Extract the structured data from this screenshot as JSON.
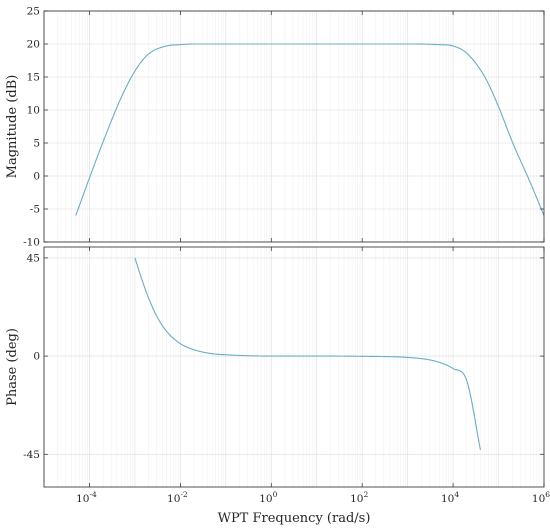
{
  "chart_data": [
    {
      "type": "line",
      "panel": "magnitude",
      "ylabel": "Magnitude (dB)",
      "ylim": [
        -10,
        25
      ],
      "yticks": [
        -10,
        -5,
        0,
        5,
        10,
        15,
        20,
        25
      ],
      "ytick_labels": [
        "-10",
        "-5",
        "0",
        "5",
        "10",
        "15",
        "20",
        "25"
      ],
      "xscale": "log",
      "xlim": [
        1e-05,
        1000000
      ],
      "grid": true,
      "series": [
        {
          "color": "#6aaec4",
          "x": [
            5e-05,
            0.0001,
            0.0002,
            0.0005,
            0.001,
            0.002,
            0.005,
            0.01,
            0.02,
            0.05,
            0.1,
            1,
            10,
            100,
            1000,
            5000,
            10000,
            20000,
            50000,
            100000,
            200000,
            500000,
            1000000
          ],
          "y": [
            -6.0,
            -0.3,
            5.2,
            11.9,
            15.9,
            18.5,
            19.7,
            19.9,
            20.0,
            20.0,
            20.0,
            20.0,
            20.0,
            20.0,
            20.0,
            19.9,
            19.7,
            18.6,
            15.0,
            10.5,
            5.2,
            -1.0,
            -6.0
          ]
        }
      ]
    },
    {
      "type": "line",
      "panel": "phase",
      "xlabel": "WPT Frequency (rad/s)",
      "ylabel": "Phase (deg)",
      "ylim": [
        -60,
        50
      ],
      "yticks": [
        -45,
        0,
        45
      ],
      "ytick_labels": [
        "-45",
        "0",
        "45"
      ],
      "xscale": "log",
      "xlim": [
        1e-05,
        1000000
      ],
      "xticks": [
        0.0001,
        0.01,
        1,
        100,
        10000,
        1000000
      ],
      "xtick_labels": [
        {
          "base": "10",
          "exp": "-4"
        },
        {
          "base": "10",
          "exp": "-2"
        },
        {
          "base": "10",
          "exp": "0"
        },
        {
          "base": "10",
          "exp": "2"
        },
        {
          "base": "10",
          "exp": "4"
        },
        {
          "base": "10",
          "exp": "6"
        }
      ],
      "grid": true,
      "series": [
        {
          "color": "#6aaec4",
          "x": [
            0.001,
            0.0015,
            0.002,
            0.003,
            0.005,
            0.01,
            0.02,
            0.05,
            0.1,
            1,
            10,
            100,
            1000,
            3000,
            5000,
            10000,
            20000,
            40000
          ],
          "y": [
            45,
            33.7,
            26.6,
            18.4,
            11.3,
            5.7,
            2.9,
            1.1,
            0.6,
            0,
            0,
            -0.1,
            -0.6,
            -1.7,
            -2.9,
            -5.7,
            -11.3,
            -43
          ]
        }
      ]
    }
  ]
}
